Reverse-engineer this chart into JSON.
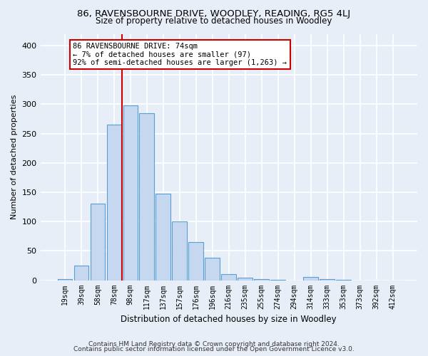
{
  "title": "86, RAVENSBOURNE DRIVE, WOODLEY, READING, RG5 4LJ",
  "subtitle": "Size of property relative to detached houses in Woodley",
  "xlabel": "Distribution of detached houses by size in Woodley",
  "ylabel": "Number of detached properties",
  "bar_color": "#c5d8f0",
  "bar_edge_color": "#5a9fd4",
  "categories": [
    "19sqm",
    "39sqm",
    "58sqm",
    "78sqm",
    "98sqm",
    "117sqm",
    "137sqm",
    "157sqm",
    "176sqm",
    "196sqm",
    "216sqm",
    "235sqm",
    "255sqm",
    "274sqm",
    "294sqm",
    "314sqm",
    "333sqm",
    "353sqm",
    "373sqm",
    "392sqm",
    "412sqm"
  ],
  "values": [
    2,
    25,
    130,
    265,
    298,
    285,
    148,
    100,
    65,
    38,
    10,
    4,
    2,
    1,
    0,
    5,
    2,
    1,
    0,
    0,
    0
  ],
  "ylim": [
    0,
    420
  ],
  "yticks": [
    0,
    50,
    100,
    150,
    200,
    250,
    300,
    350,
    400
  ],
  "vline_x_index": 3,
  "vline_color": "#cc0000",
  "annotation_text": "86 RAVENSBOURNE DRIVE: 74sqm\n← 7% of detached houses are smaller (97)\n92% of semi-detached houses are larger (1,263) →",
  "annotation_box_color": "#ffffff",
  "annotation_box_edge": "#cc0000",
  "bg_color": "#e8eef8",
  "grid_color": "#ffffff",
  "footer1": "Contains HM Land Registry data © Crown copyright and database right 2024.",
  "footer2": "Contains public sector information licensed under the Open Government Licence v3.0."
}
